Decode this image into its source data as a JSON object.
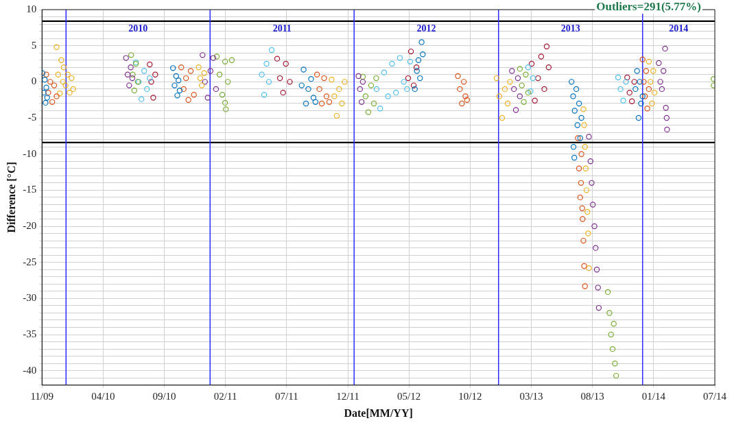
{
  "chart_data": {
    "type": "scatter",
    "xlabel": "Date[MM/YY]",
    "ylabel": "Difference [°C]",
    "marker": "circle",
    "grid": true,
    "xlim": [
      "2009-11-01",
      "2014-07-03"
    ],
    "xticks": [
      {
        "value": "2009-11-01",
        "label": "11/09"
      },
      {
        "value": "2010-04-05",
        "label": "04/10"
      },
      {
        "value": "2010-09-07",
        "label": "09/10"
      },
      {
        "value": "2011-02-09",
        "label": "02/11"
      },
      {
        "value": "2011-07-14",
        "label": "07/11"
      },
      {
        "value": "2011-12-16",
        "label": "12/11"
      },
      {
        "value": "2012-05-19",
        "label": "05/12"
      },
      {
        "value": "2012-10-21",
        "label": "10/12"
      },
      {
        "value": "2013-03-25",
        "label": "03/13"
      },
      {
        "value": "2013-08-27",
        "label": "08/13"
      },
      {
        "value": "2014-01-29",
        "label": "01/14"
      },
      {
        "value": "2014-07-03",
        "label": "07/14"
      }
    ],
    "ylim": [
      -42,
      10
    ],
    "yticks": [
      {
        "value": -42,
        "label": null
      },
      {
        "value": -41,
        "label": null
      },
      -40,
      {
        "value": -39,
        "label": null
      },
      {
        "value": -38,
        "label": null
      },
      {
        "value": -37,
        "label": null
      },
      {
        "value": -36,
        "label": null
      },
      -35,
      {
        "value": -34,
        "label": null
      },
      {
        "value": -33,
        "label": null
      },
      {
        "value": -32,
        "label": null
      },
      {
        "value": -31,
        "label": null
      },
      -30,
      {
        "value": -29,
        "label": null
      },
      {
        "value": -28,
        "label": null
      },
      {
        "value": -27,
        "label": null
      },
      {
        "value": -26,
        "label": null
      },
      -25,
      {
        "value": -24,
        "label": null
      },
      {
        "value": -23,
        "label": null
      },
      {
        "value": -22,
        "label": null
      },
      {
        "value": -21,
        "label": null
      },
      -20,
      {
        "value": -19,
        "label": null
      },
      {
        "value": -18,
        "label": null
      },
      {
        "value": -17,
        "label": null
      },
      {
        "value": -16,
        "label": null
      },
      -15,
      {
        "value": -14,
        "label": null
      },
      {
        "value": -13,
        "label": null
      },
      {
        "value": -12,
        "label": null
      },
      {
        "value": -11,
        "label": null
      },
      -10,
      {
        "value": -9,
        "label": null
      },
      {
        "value": -8,
        "label": null
      },
      {
        "value": -7,
        "label": null
      },
      {
        "value": -6,
        "label": null
      },
      -5,
      {
        "value": -4,
        "label": null
      },
      {
        "value": -3,
        "label": null
      },
      {
        "value": -2,
        "label": null
      },
      {
        "value": -1,
        "label": null
      },
      0,
      {
        "value": 1,
        "label": null
      },
      {
        "value": 2,
        "label": null
      },
      {
        "value": 3,
        "label": null
      },
      {
        "value": 4,
        "label": null
      },
      5,
      {
        "value": 6,
        "label": null
      },
      {
        "value": 7,
        "label": null
      },
      {
        "value": 8,
        "label": null
      },
      {
        "value": 9,
        "label": null
      },
      10
    ],
    "ref_lines": [
      {
        "axis": "y",
        "value": 8.4,
        "color": "#000000"
      },
      {
        "axis": "y",
        "value": -8.4,
        "color": "#000000"
      },
      {
        "axis": "x",
        "value": "2010-01-01",
        "color": "#2b2bff"
      },
      {
        "axis": "x",
        "value": "2011-01-01",
        "color": "#2b2bff"
      },
      {
        "axis": "x",
        "value": "2012-01-01",
        "color": "#2b2bff"
      },
      {
        "axis": "x",
        "value": "2013-01-01",
        "color": "#2b2bff"
      },
      {
        "axis": "x",
        "value": "2014-01-01",
        "color": "#2b2bff"
      }
    ],
    "annotations": [
      "Outliers=291(5.77%)",
      "2010",
      "2011",
      "2012",
      "2013",
      "2014"
    ],
    "series": [
      {
        "color": "#0072bd",
        "x": [
          "2009-11-02",
          "2009-11-05",
          "2009-11-08",
          "2009-11-10",
          "2009-11-12",
          "2009-11-14",
          "2010-09-29",
          "2010-10-03",
          "2010-10-07",
          "2010-10-10",
          "2010-10-13",
          "2010-10-16",
          "2011-08-21",
          "2011-08-26",
          "2011-09-01",
          "2011-09-07",
          "2011-09-14",
          "2011-09-20",
          "2011-09-25",
          "2012-06-03",
          "2012-06-08",
          "2012-06-12",
          "2012-06-16",
          "2012-06-20",
          "2012-06-23",
          "2013-07-05",
          "2013-07-09",
          "2013-07-13",
          "2013-07-17",
          "2013-07-20",
          "2013-07-24",
          "2013-07-27",
          "2013-07-30",
          "2013-07-10",
          "2013-07-12",
          "2013-12-14",
          "2013-12-18",
          "2013-12-22",
          "2013-12-25",
          "2013-12-28",
          "2014-01-01"
        ],
        "values": [
          1.2,
          -1.5,
          0.3,
          -2.9,
          -0.8,
          -2.2,
          1.9,
          -0.5,
          0.8,
          -1.9,
          0.2,
          -1.2,
          -0.5,
          1.7,
          -3,
          -1,
          0.4,
          -2.2,
          -2.8,
          -1,
          1.5,
          3,
          0.5,
          5.5,
          3.8,
          0,
          -2,
          -4,
          -1,
          -6,
          -3,
          -7.8,
          -5,
          -9,
          -10.5,
          -1,
          1.5,
          -5,
          0,
          -3,
          -2
        ]
      },
      {
        "color": "#d95319",
        "x": [
          "2009-11-12",
          "2009-11-17",
          "2009-11-22",
          "2009-11-27",
          "2009-12-02",
          "2009-12-08",
          "2010-10-20",
          "2010-10-26",
          "2010-11-01",
          "2010-11-07",
          "2010-11-13",
          "2010-11-21",
          "2011-09-29",
          "2011-10-05",
          "2011-10-11",
          "2011-10-17",
          "2011-10-23",
          "2011-10-30",
          "2012-09-20",
          "2012-09-25",
          "2012-09-30",
          "2012-10-05",
          "2012-10-09",
          "2012-10-13",
          "2013-07-21",
          "2013-07-24",
          "2013-07-27",
          "2013-07-30",
          "2013-08-02",
          "2013-08-04",
          "2013-08-06",
          "2013-08-08",
          "2013-07-29",
          "2013-08-01",
          "2014-01-01",
          "2014-01-04",
          "2014-01-07",
          "2014-01-10",
          "2014-01-13",
          "2014-01-17"
        ],
        "values": [
          1,
          -1.5,
          0,
          -2.8,
          -0.5,
          -2,
          2,
          -1,
          0.5,
          -2.5,
          1.5,
          -1.8,
          1,
          -1,
          -3,
          0.5,
          -2,
          -2.8,
          0.8,
          -1,
          -3,
          0,
          -2,
          -2.5,
          -7.8,
          -12,
          -16,
          -10,
          -19,
          -22,
          -25.5,
          -28.3,
          -14,
          -17.5,
          3.1,
          0,
          -2,
          1.5,
          -3.7,
          -1
        ]
      },
      {
        "color": "#edb120",
        "x": [
          "2009-12-08",
          "2009-12-12",
          "2009-12-16",
          "2009-12-20",
          "2009-12-24",
          "2009-12-26",
          "2009-12-31",
          "2010-01-05",
          "2010-01-10",
          "2010-01-15",
          "2010-01-19",
          "2010-12-03",
          "2010-12-07",
          "2010-12-11",
          "2010-12-17",
          "2011-11-05",
          "2011-11-12",
          "2011-11-18",
          "2011-11-24",
          "2011-12-01",
          "2011-12-08",
          "2012-12-27",
          "2013-01-03",
          "2013-01-10",
          "2013-01-17",
          "2013-01-24",
          "2013-01-30",
          "2013-08-04",
          "2013-08-06",
          "2013-08-08",
          "2013-08-10",
          "2013-08-12",
          "2013-08-14",
          "2013-08-16",
          "2013-08-18",
          "2014-01-17",
          "2014-01-21",
          "2014-01-25",
          "2014-01-28",
          "2014-01-31"
        ],
        "values": [
          4.8,
          1,
          -1.6,
          3,
          0,
          2,
          -0.5,
          1,
          -1.5,
          0.5,
          -1,
          2,
          0.5,
          -0.5,
          1.2,
          0.3,
          -2,
          -4.7,
          -1,
          -3,
          0,
          0.5,
          -2,
          -5,
          -1,
          -3,
          0,
          -3.8,
          -6,
          -9,
          -12,
          -15,
          -18,
          -21,
          -25.8,
          2.8,
          0,
          -3,
          1.5,
          -1.5
        ]
      },
      {
        "color": "#7e2f8e",
        "x": [
          "2010-06-02",
          "2010-06-06",
          "2010-06-10",
          "2010-06-14",
          "2010-06-18",
          "2010-12-13",
          "2010-12-19",
          "2010-12-26",
          "2011-01-02",
          "2011-01-09",
          "2011-01-16",
          "2012-01-12",
          "2012-01-16",
          "2012-01-20",
          "2012-01-23",
          "2013-02-04",
          "2013-02-09",
          "2013-02-14",
          "2013-02-19",
          "2013-02-24",
          "2013-08-18",
          "2013-08-22",
          "2013-08-25",
          "2013-08-28",
          "2013-09-01",
          "2013-09-04",
          "2013-09-07",
          "2013-09-10",
          "2013-09-12",
          "2014-02-11",
          "2014-02-15",
          "2014-02-19",
          "2014-02-23",
          "2014-02-27",
          "2014-03-01",
          "2014-03-03",
          "2014-03-04"
        ],
        "values": [
          3.3,
          1,
          -0.5,
          2,
          0.5,
          3.7,
          0,
          -2.2,
          1.5,
          3.3,
          -1,
          0.8,
          -1,
          -2.8,
          0,
          1.5,
          -1,
          -3.9,
          0.5,
          -2,
          -7.6,
          -11,
          -14,
          -17,
          -20,
          -23,
          -26,
          -28.5,
          -31.3,
          2.6,
          0,
          -1,
          1.5,
          4.6,
          -3.6,
          -5,
          -6.6
        ]
      },
      {
        "color": "#77ac30",
        "x": [
          "2010-06-15",
          "2010-06-19",
          "2010-06-23",
          "2010-06-27",
          "2010-07-02",
          "2011-01-18",
          "2011-01-25",
          "2011-02-01",
          "2011-02-08",
          "2011-02-15",
          "2011-02-25",
          "2011-02-08",
          "2011-02-10",
          "2012-01-23",
          "2012-01-30",
          "2012-02-06",
          "2012-02-13",
          "2012-02-20",
          "2012-02-26",
          "2013-02-24",
          "2013-03-01",
          "2013-03-06",
          "2013-03-11",
          "2013-03-17",
          "2013-10-05",
          "2013-10-09",
          "2013-10-13",
          "2013-10-17",
          "2013-10-20",
          "2013-10-23",
          "2013-10-26",
          "2014-06-30",
          "2014-06-30"
        ],
        "values": [
          3.7,
          1,
          -1.2,
          2.5,
          0,
          3.5,
          1,
          -1.8,
          2.8,
          0,
          3,
          -2.9,
          -3.8,
          0.7,
          -2,
          -4.2,
          -0.5,
          -3,
          0.5,
          1.8,
          -0.5,
          -2.8,
          1,
          -1.5,
          -29.1,
          -32,
          -35,
          -37,
          -33.5,
          -39,
          -40.7,
          0.4,
          -0.5
        ]
      },
      {
        "color": "#4dbeee",
        "x": [
          "2010-06-27",
          "2010-07-04",
          "2010-07-11",
          "2010-07-18",
          "2010-07-25",
          "2010-08-01",
          "2011-05-12",
          "2011-05-18",
          "2011-05-24",
          "2011-05-30",
          "2011-06-06",
          "2012-02-27",
          "2012-03-07",
          "2012-03-17",
          "2012-03-27",
          "2012-04-06",
          "2012-04-16",
          "2012-04-26",
          "2012-05-06",
          "2012-05-14",
          "2012-05-22",
          "2013-03-17",
          "2013-03-23",
          "2013-03-29",
          "2013-10-31",
          "2013-11-06",
          "2013-11-13",
          "2013-11-20"
        ],
        "values": [
          2.7,
          0,
          -2.4,
          1.5,
          -1,
          0.5,
          1,
          -1.8,
          2.5,
          0,
          4.4,
          -1,
          -3.7,
          1.3,
          -2,
          2.5,
          -1.5,
          3.3,
          0,
          -1,
          2.8,
          2,
          -1.3,
          0.5,
          0.6,
          -1,
          -2.6,
          0
        ]
      },
      {
        "color": "#a2142f",
        "x": [
          "2010-08-01",
          "2010-08-05",
          "2010-08-10",
          "2010-08-15",
          "2011-06-20",
          "2011-06-27",
          "2011-07-05",
          "2011-07-12",
          "2011-07-22",
          "2012-05-17",
          "2012-05-24",
          "2012-05-31",
          "2012-06-07",
          "2013-03-26",
          "2013-04-03",
          "2013-04-11",
          "2013-04-19",
          "2013-04-27",
          "2013-05-03",
          "2013-05-08",
          "2013-11-23",
          "2013-11-29",
          "2013-12-05",
          "2013-12-11"
        ],
        "values": [
          2.4,
          0,
          -2.2,
          1,
          3.2,
          0.5,
          -1.5,
          2.5,
          0,
          0.5,
          4.2,
          -0.5,
          2,
          2.5,
          -2.6,
          0.5,
          3.5,
          -1,
          4.9,
          2,
          0.6,
          -1.5,
          -2.7,
          0
        ]
      }
    ]
  }
}
